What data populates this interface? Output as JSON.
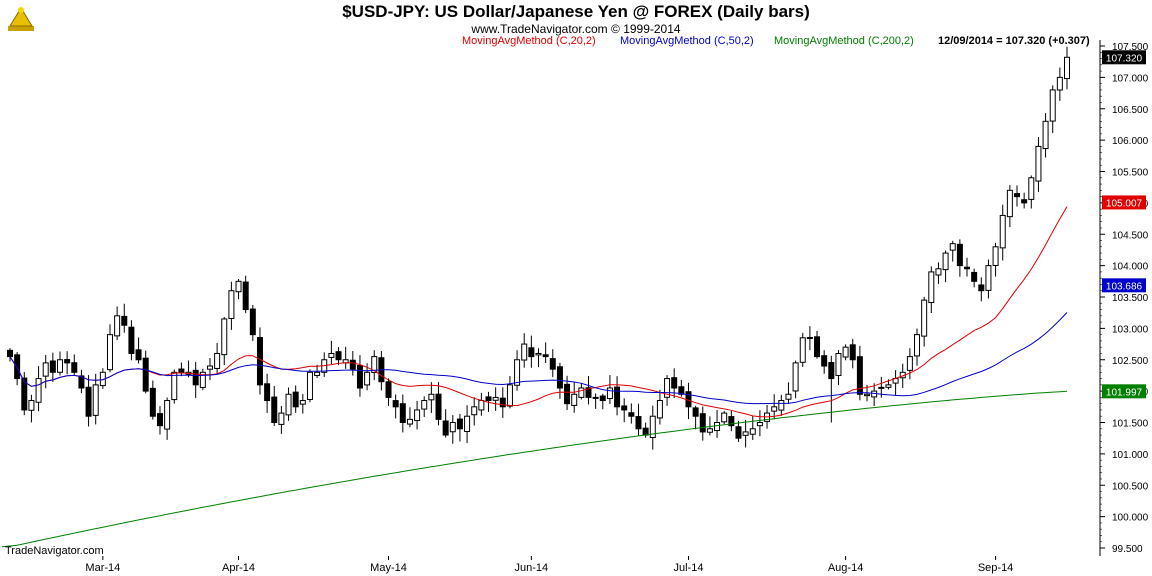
{
  "header": {
    "title": "$USD-JPY:  US Dollar/Japanese Yen @ FOREX  (Daily bars)",
    "subtitle": "www.TradeNavigator.com © 1999-2014",
    "legend": [
      {
        "label": "MovingAvgMethod (C,20,2)",
        "color": "#e00000"
      },
      {
        "label": "MovingAvgMethod (C,50,2)",
        "color": "#0000cc"
      },
      {
        "label": "MovingAvgMethod (C,200,2)",
        "color": "#008000"
      }
    ],
    "last_close_note": "12/09/2014 = 107.320 (+0.307)"
  },
  "footer": {
    "watermark": "TradeNavigator.com"
  },
  "chart_data": {
    "type": "candlestick",
    "y_ticks": [
      "107.500",
      "107.000",
      "106.500",
      "106.000",
      "105.500",
      "105.000",
      "104.500",
      "104.000",
      "103.500",
      "103.000",
      "102.500",
      "102.000",
      "101.500",
      "101.000",
      "100.500",
      "100.000",
      "99.500"
    ],
    "ylim": [
      99.5,
      107.5
    ],
    "x_labels": [
      "Mar-14",
      "Apr-14",
      "May-14",
      "Jun-14",
      "Jul-14",
      "Aug-14",
      "Sep-14"
    ],
    "price_tags": [
      {
        "label": "107.320",
        "value": 107.32,
        "bg": "#000000",
        "fg": "#ffffff"
      },
      {
        "label": "105.007",
        "value": 105.007,
        "bg": "#e00000",
        "fg": "#ffffff"
      },
      {
        "label": "103.686",
        "value": 103.686,
        "bg": "#0000cc",
        "fg": "#ffffff"
      },
      {
        "label": "101.997",
        "value": 101.997,
        "bg": "#008000",
        "fg": "#ffffff"
      }
    ],
    "closes": [
      102.55,
      102.2,
      101.7,
      101.85,
      102.2,
      102.45,
      102.3,
      102.5,
      102.45,
      102.3,
      102.05,
      101.6,
      102.1,
      102.3,
      102.9,
      103.2,
      103.05,
      102.6,
      102.5,
      102.0,
      101.6,
      101.45,
      101.85,
      102.3,
      102.3,
      102.3,
      102.1,
      102.3,
      102.4,
      102.6,
      103.15,
      103.6,
      103.75,
      103.3,
      102.9,
      102.1,
      101.85,
      101.5,
      101.65,
      101.95,
      101.75,
      101.85,
      102.3,
      102.3,
      102.5,
      102.6,
      102.5,
      102.5,
      102.35,
      102.05,
      102.3,
      102.55,
      102.15,
      101.9,
      101.75,
      101.5,
      101.55,
      101.7,
      101.85,
      101.95,
      101.55,
      101.3,
      101.5,
      101.4,
      101.6,
      101.75,
      101.85,
      101.85,
      101.9,
      101.75,
      102.1,
      102.5,
      102.75,
      102.55,
      102.6,
      102.55,
      102.35,
      102.05,
      101.8,
      101.95,
      102.05,
      101.9,
      101.9,
      101.85,
      102.05,
      101.75,
      101.7,
      101.6,
      101.4,
      101.3,
      101.6,
      101.85,
      102.2,
      102.05,
      101.95,
      101.75,
      101.6,
      101.35,
      101.4,
      101.5,
      101.65,
      101.45,
      101.25,
      101.35,
      101.4,
      101.5,
      101.65,
      101.75,
      101.85,
      101.95,
      102.45,
      102.85,
      102.85,
      102.55,
      102.4,
      102.2,
      102.6,
      102.7,
      102.5,
      101.95,
      101.95,
      102.0,
      102.05,
      102.1,
      102.2,
      102.3,
      102.55,
      102.9,
      103.45,
      103.9,
      103.95,
      104.2,
      104.35,
      104.0,
      103.95,
      103.75,
      103.6,
      104.0,
      104.3,
      104.8,
      105.2,
      105.1,
      105.0,
      105.4,
      105.9,
      106.3,
      106.8,
      107.0,
      107.32
    ],
    "volatility": 0.2,
    "low_wick_events": [
      {
        "index": 115,
        "low": 101.5
      }
    ],
    "ma_periods": [
      20,
      50,
      200
    ],
    "ma200_start": 99.52
  }
}
